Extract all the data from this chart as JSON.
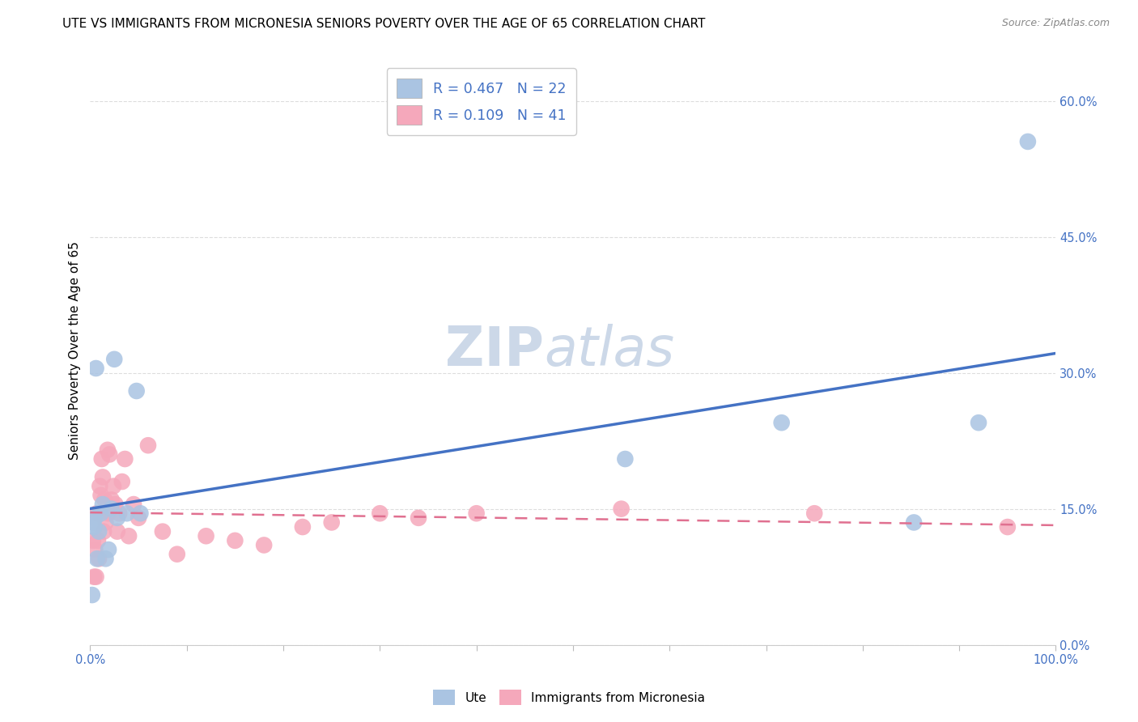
{
  "title": "UTE VS IMMIGRANTS FROM MICRONESIA SENIORS POVERTY OVER THE AGE OF 65 CORRELATION CHART",
  "source": "Source: ZipAtlas.com",
  "ylabel": "Seniors Poverty Over the Age of 65",
  "xlim": [
    0,
    1.0
  ],
  "ylim": [
    0,
    0.65
  ],
  "xticks": [
    0.0,
    0.1,
    0.2,
    0.3,
    0.4,
    0.5,
    0.6,
    0.7,
    0.8,
    0.9,
    1.0
  ],
  "xticklabels_show": [
    "0.0%",
    "",
    "",
    "",
    "",
    "",
    "",
    "",
    "",
    "",
    "100.0%"
  ],
  "yticks": [
    0.0,
    0.15,
    0.3,
    0.45,
    0.6
  ],
  "yticklabels": [
    "0.0%",
    "15.0%",
    "30.0%",
    "45.0%",
    "60.0%"
  ],
  "R_ute": 0.467,
  "N_ute": 22,
  "R_micro": 0.109,
  "N_micro": 41,
  "ute_color": "#aac4e2",
  "micro_color": "#f5a8bb",
  "ute_line_color": "#4472c4",
  "micro_line_color": "#e07090",
  "legend_text_color": "#4472c4",
  "watermark_color": "#ccd8e8",
  "background_color": "#ffffff",
  "ute_x": [
    0.003,
    0.005,
    0.007,
    0.009,
    0.011,
    0.013,
    0.016,
    0.019,
    0.022,
    0.025,
    0.028,
    0.038,
    0.048,
    0.052,
    0.002,
    0.004,
    0.006,
    0.554,
    0.716,
    0.853,
    0.92,
    0.971
  ],
  "ute_y": [
    0.135,
    0.14,
    0.095,
    0.125,
    0.145,
    0.155,
    0.095,
    0.105,
    0.15,
    0.315,
    0.14,
    0.145,
    0.28,
    0.145,
    0.055,
    0.13,
    0.305,
    0.205,
    0.245,
    0.135,
    0.245,
    0.555
  ],
  "micro_x": [
    0.003,
    0.004,
    0.005,
    0.006,
    0.007,
    0.008,
    0.009,
    0.01,
    0.011,
    0.012,
    0.013,
    0.014,
    0.015,
    0.016,
    0.018,
    0.019,
    0.02,
    0.022,
    0.024,
    0.026,
    0.028,
    0.03,
    0.033,
    0.036,
    0.04,
    0.045,
    0.05,
    0.06,
    0.075,
    0.09,
    0.12,
    0.15,
    0.18,
    0.22,
    0.25,
    0.3,
    0.34,
    0.4,
    0.55,
    0.75,
    0.95
  ],
  "micro_y": [
    0.115,
    0.075,
    0.105,
    0.075,
    0.145,
    0.115,
    0.095,
    0.175,
    0.165,
    0.205,
    0.185,
    0.125,
    0.16,
    0.135,
    0.215,
    0.145,
    0.21,
    0.16,
    0.175,
    0.155,
    0.125,
    0.145,
    0.18,
    0.205,
    0.12,
    0.155,
    0.14,
    0.22,
    0.125,
    0.1,
    0.12,
    0.115,
    0.11,
    0.13,
    0.135,
    0.145,
    0.14,
    0.145,
    0.15,
    0.145,
    0.13
  ],
  "grid_color": "#dddddd",
  "title_fontsize": 11,
  "axis_label_fontsize": 11,
  "tick_fontsize": 10.5,
  "legend_fontsize": 12.5,
  "watermark_zip_fontsize": 48,
  "watermark_atlas_fontsize": 48
}
